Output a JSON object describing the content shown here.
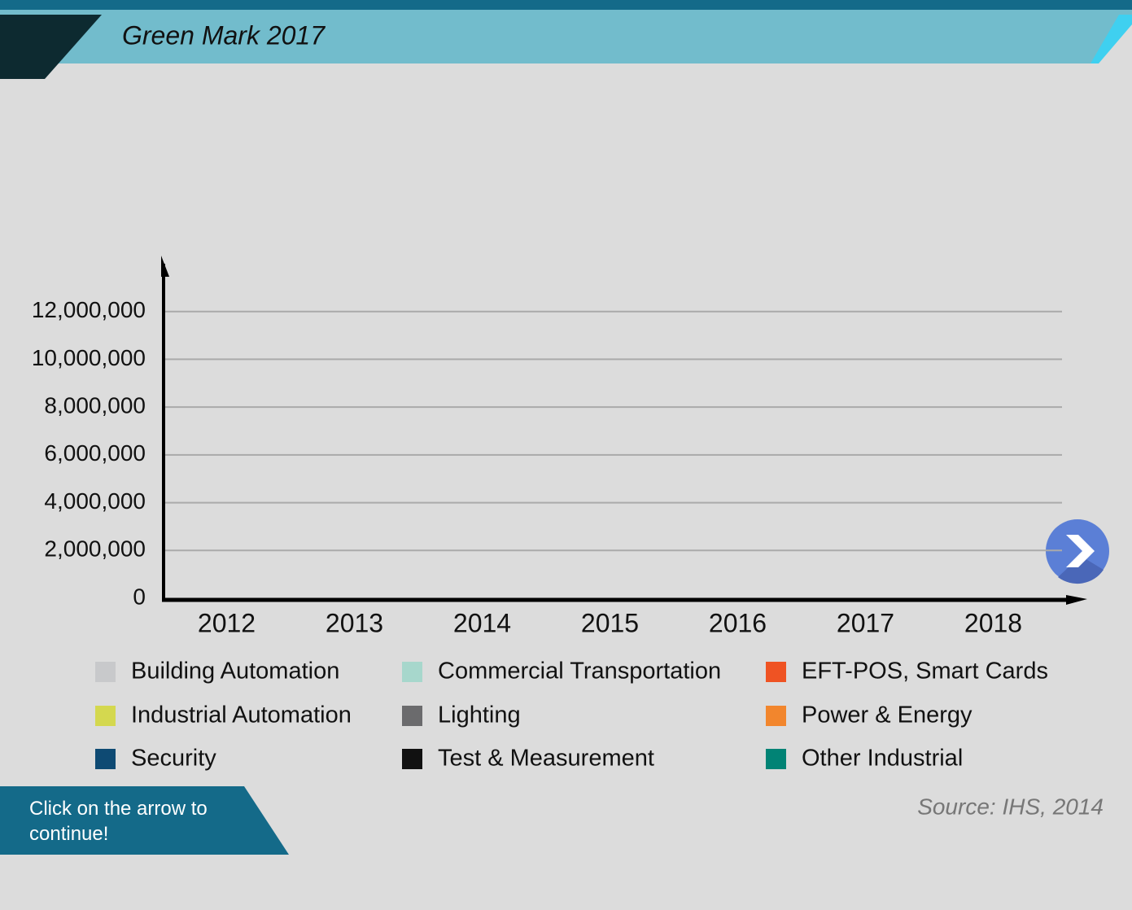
{
  "header": {
    "title": "Green Mark 2017"
  },
  "chart_data": {
    "type": "bar",
    "categories": [
      "2012",
      "2013",
      "2014",
      "2015",
      "2016",
      "2017",
      "2018"
    ],
    "series": [
      {
        "name": "Building Automation",
        "color": "#c8c9cb"
      },
      {
        "name": "Commercial Transportation",
        "color": "#a7d7cc"
      },
      {
        "name": "EFT-POS, Smart Cards",
        "color": "#ef5323"
      },
      {
        "name": "Industrial Automation",
        "color": "#d4d84f"
      },
      {
        "name": "Lighting",
        "color": "#6b6b6d"
      },
      {
        "name": "Power & Energy",
        "color": "#f2862d"
      },
      {
        "name": "Security",
        "color": "#0e4a73"
      },
      {
        "name": "Test & Measurement",
        "color": "#111111"
      },
      {
        "name": "Other Industrial",
        "color": "#018375"
      }
    ],
    "ylim": [
      0,
      14000000
    ],
    "yticks": [
      0,
      {
        "value": 2000000,
        "label": "2,000,000"
      },
      {
        "value": 4000000,
        "label": "4,000,000"
      },
      {
        "value": 6000000,
        "label": "6,000,000"
      },
      {
        "value": 8000000,
        "label": "8,000,000"
      },
      {
        "value": 10000000,
        "label": "10,000,000"
      },
      {
        "value": 12000000,
        "label": "12,000,000"
      }
    ],
    "grid": true,
    "source": "Source: IHS, 2014"
  },
  "footer": {
    "hint": "Click on the arrow to continue!"
  }
}
